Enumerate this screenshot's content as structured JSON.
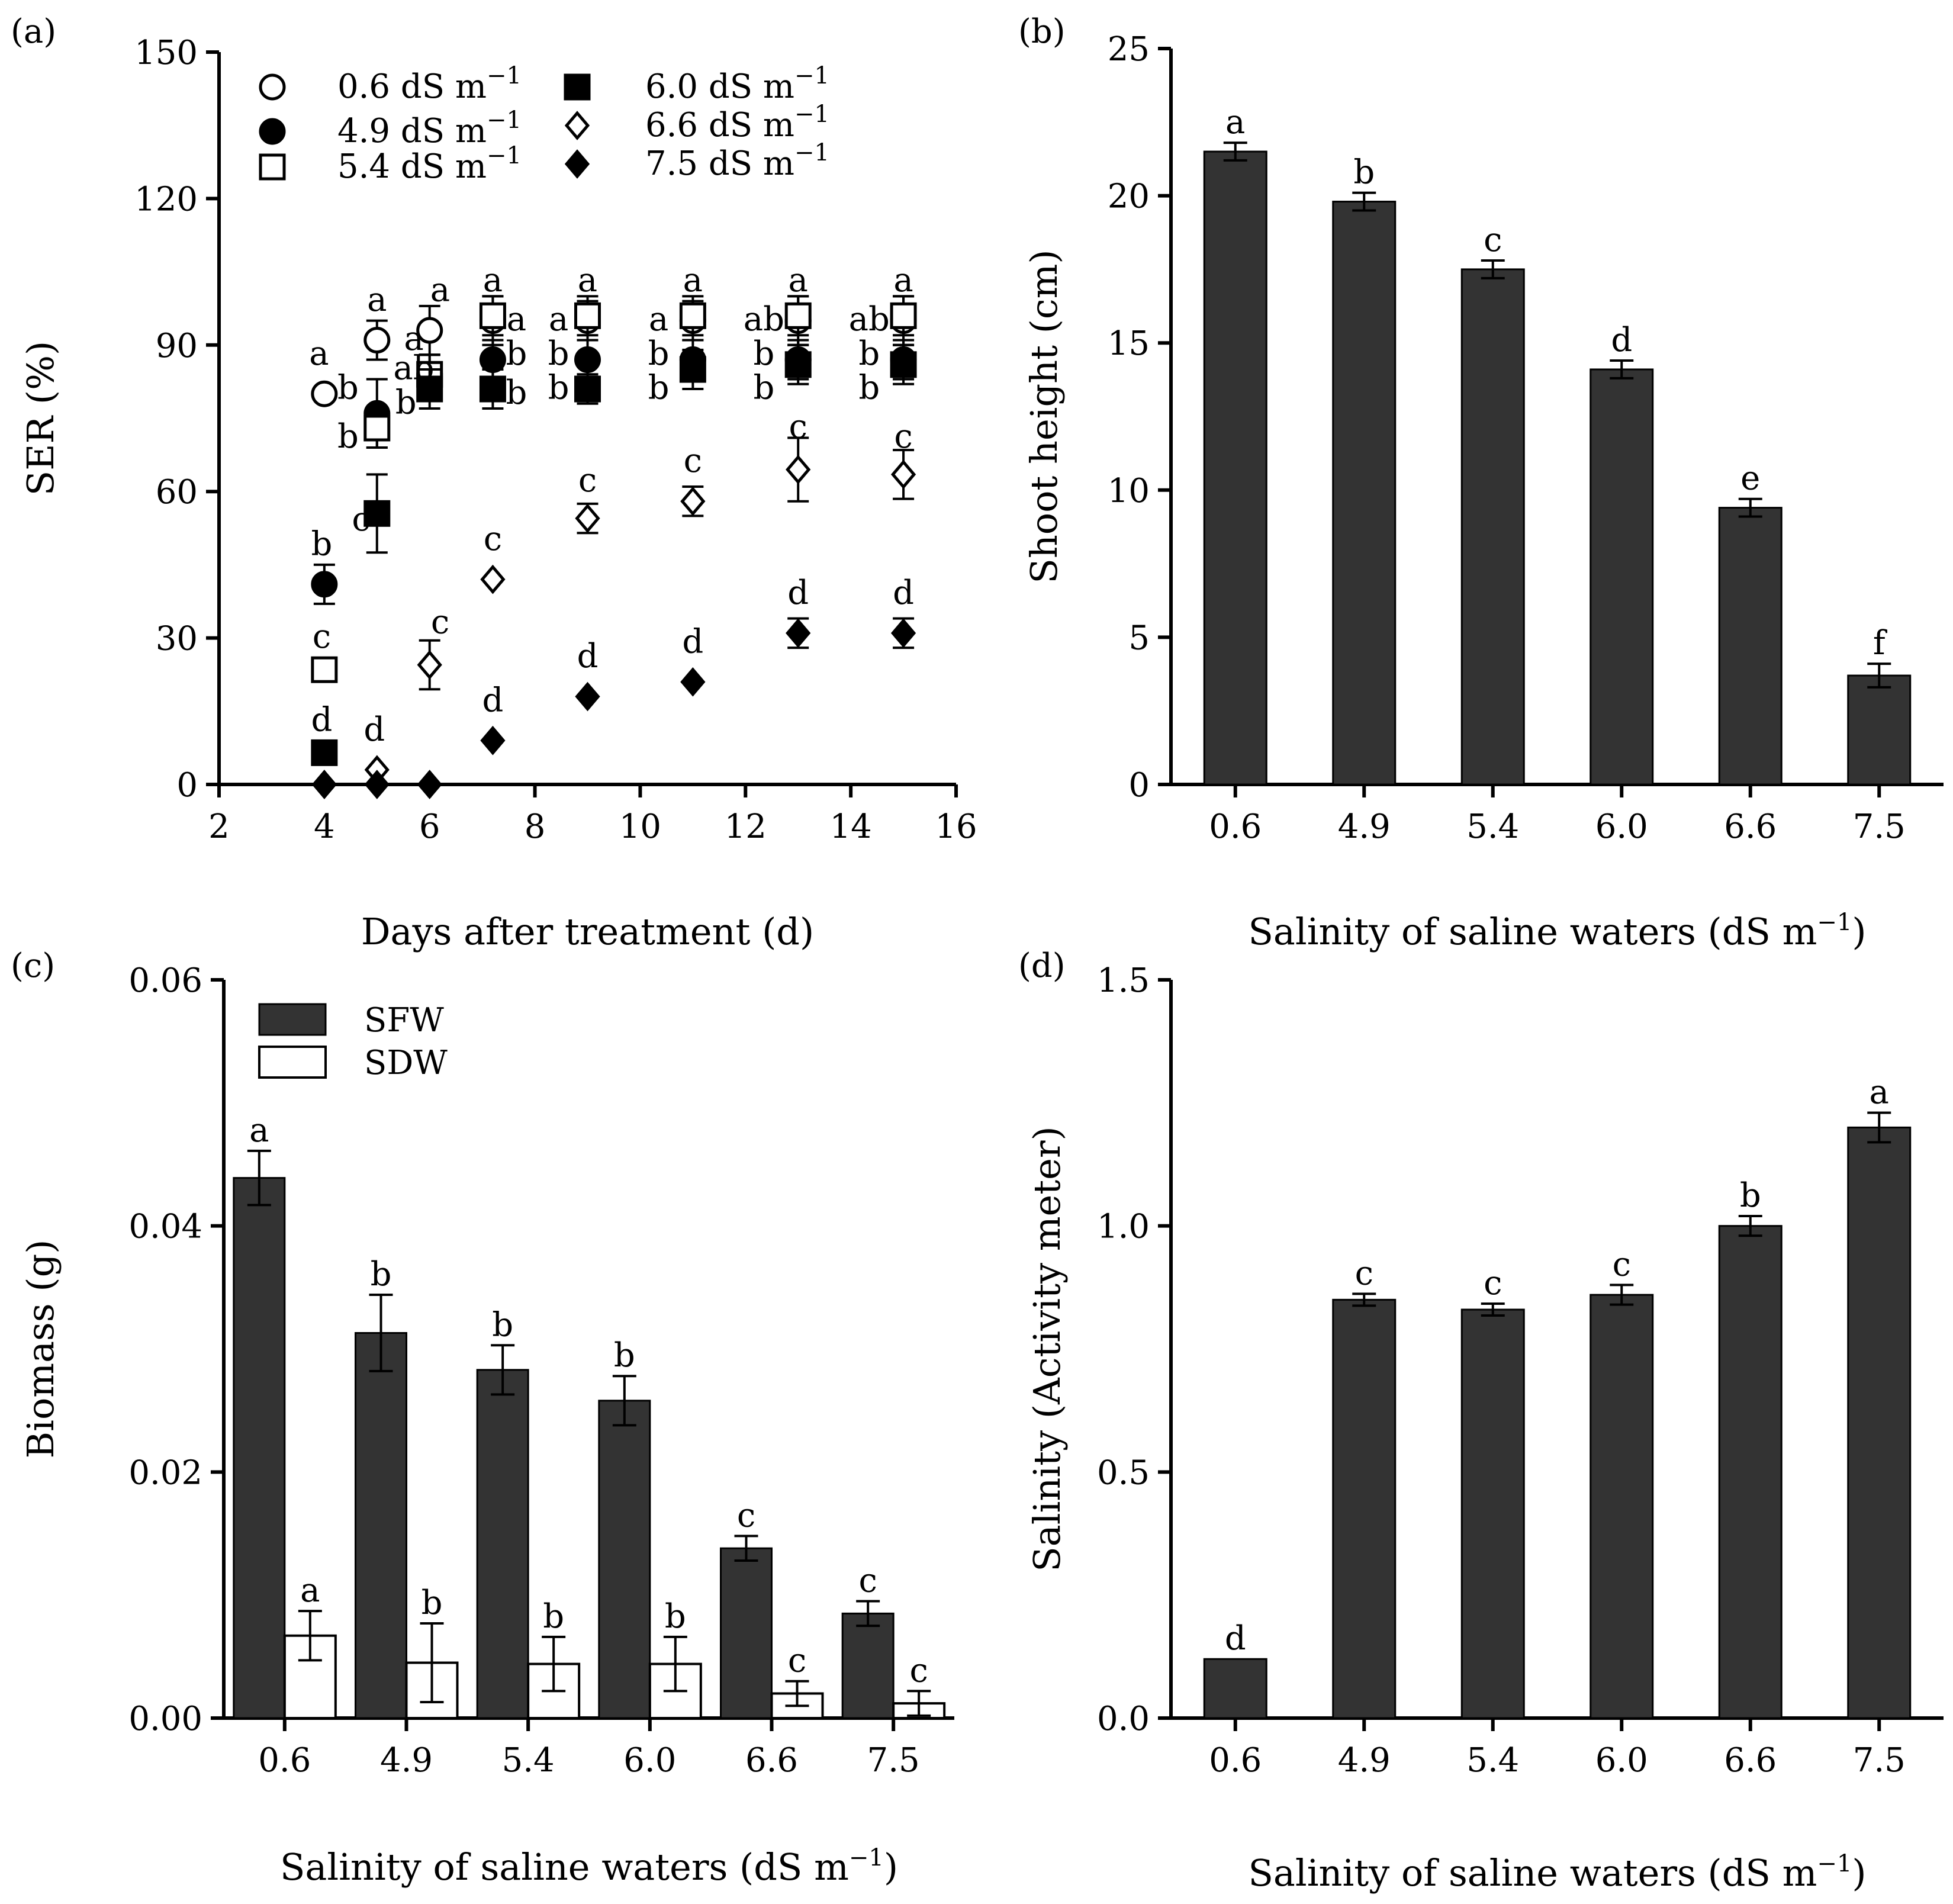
{
  "chart_data": [
    {
      "id": "a",
      "panel_label": "(a)",
      "type": "scatter",
      "xlabel": "Days after treatment (d)",
      "ylabel": "SER (%)",
      "xlim": [
        2,
        16
      ],
      "ylim": [
        0,
        150
      ],
      "xticks": [
        2,
        4,
        6,
        8,
        10,
        12,
        14,
        16
      ],
      "yticks": [
        0,
        30,
        60,
        90,
        120,
        150
      ],
      "legend": {
        "position": "top-left",
        "entries": [
          {
            "label": "0.6 dS m",
            "sup": "−1"
          },
          {
            "label": "4.9 dS m",
            "sup": "−1"
          },
          {
            "label": "5.4 dS m",
            "sup": "−1"
          },
          {
            "label": "6.0 dS m",
            "sup": "−1"
          },
          {
            "label": "6.6 dS m",
            "sup": "−1"
          },
          {
            "label": "7.5 dS m",
            "sup": "−1"
          }
        ]
      },
      "series": [
        {
          "name": "0.6 dS m−1",
          "marker": "circle-open",
          "x": [
            4,
            5,
            6,
            7.2,
            9,
            11,
            13,
            15
          ],
          "y": [
            80,
            91,
            93,
            95,
            95,
            95,
            95,
            95
          ],
          "err": [
            0,
            4,
            5,
            5,
            4,
            4,
            5,
            5
          ]
        },
        {
          "name": "4.9 dS m−1",
          "marker": "circle-filled",
          "x": [
            4,
            5,
            6,
            7.2,
            9,
            11,
            13,
            15
          ],
          "y": [
            41,
            76,
            84,
            87,
            87,
            87,
            87,
            87
          ],
          "err": [
            4,
            7,
            4,
            4,
            4,
            4,
            4,
            4
          ]
        },
        {
          "name": "5.4 dS m−1",
          "marker": "square-open",
          "x": [
            4,
            5,
            6,
            7.2,
            9,
            11,
            13,
            15
          ],
          "y": [
            23.5,
            73,
            84,
            96,
            96,
            96,
            96,
            96
          ],
          "err": [
            0,
            4,
            4,
            4,
            4,
            4,
            4,
            4
          ]
        },
        {
          "name": "6.0 dS m−1",
          "marker": "square-filled",
          "x": [
            4,
            5,
            6,
            7.2,
            9,
            11,
            13,
            15
          ],
          "y": [
            6.5,
            55.5,
            81,
            81,
            81,
            85,
            86,
            86
          ],
          "err": [
            0,
            8,
            4,
            4,
            3,
            4,
            4,
            4
          ]
        },
        {
          "name": "6.6 dS m−1",
          "marker": "diamond-open",
          "x": [
            4,
            5,
            6,
            7.2,
            9,
            11,
            13,
            15
          ],
          "y": [
            0,
            3,
            24.5,
            42,
            54.5,
            58,
            64.5,
            63.5
          ],
          "err": [
            0,
            0,
            5,
            0,
            3,
            3,
            6.5,
            5
          ]
        },
        {
          "name": "7.5 dS m−1",
          "marker": "diamond-filled",
          "x": [
            4,
            5,
            6,
            7.2,
            9,
            11,
            13,
            15
          ],
          "y": [
            0,
            0,
            0,
            9,
            18,
            21,
            31,
            31
          ],
          "err": [
            0,
            0,
            0,
            0,
            0,
            0,
            3,
            3
          ]
        }
      ],
      "annotations": [
        {
          "text": "a",
          "x": 3.9,
          "y": 86
        },
        {
          "text": "b",
          "x": 4.45,
          "y": 79
        },
        {
          "text": "b",
          "x": 4.45,
          "y": 69
        },
        {
          "text": "b",
          "x": 3.95,
          "y": 47
        },
        {
          "text": "c",
          "x": 3.95,
          "y": 28
        },
        {
          "text": "d",
          "x": 3.95,
          "y": 11
        },
        {
          "text": "a",
          "x": 5.0,
          "y": 97
        },
        {
          "text": "c",
          "x": 4.7,
          "y": 52
        },
        {
          "text": "d",
          "x": 4.95,
          "y": 9
        },
        {
          "text": "a",
          "x": 6.2,
          "y": 99
        },
        {
          "text": "ab",
          "x": 5.7,
          "y": 83
        },
        {
          "text": "b",
          "x": 5.55,
          "y": 76
        },
        {
          "text": "a",
          "x": 5.7,
          "y": 89
        },
        {
          "text": "c",
          "x": 6.2,
          "y": 31
        },
        {
          "text": "a",
          "x": 7.2,
          "y": 101
        },
        {
          "text": "a",
          "x": 7.65,
          "y": 93
        },
        {
          "text": "b",
          "x": 7.65,
          "y": 86
        },
        {
          "text": "b",
          "x": 7.65,
          "y": 78
        },
        {
          "text": "c",
          "x": 7.2,
          "y": 48
        },
        {
          "text": "d",
          "x": 7.2,
          "y": 15
        },
        {
          "text": "a",
          "x": 9.0,
          "y": 101
        },
        {
          "text": "a",
          "x": 8.45,
          "y": 93
        },
        {
          "text": "b",
          "x": 8.45,
          "y": 86
        },
        {
          "text": "b",
          "x": 8.45,
          "y": 79
        },
        {
          "text": "c",
          "x": 9.0,
          "y": 60
        },
        {
          "text": "d",
          "x": 9.0,
          "y": 24
        },
        {
          "text": "a",
          "x": 11.0,
          "y": 101
        },
        {
          "text": "a",
          "x": 10.35,
          "y": 93
        },
        {
          "text": "b",
          "x": 10.35,
          "y": 86
        },
        {
          "text": "b",
          "x": 10.35,
          "y": 79
        },
        {
          "text": "c",
          "x": 11.0,
          "y": 64
        },
        {
          "text": "d",
          "x": 11.0,
          "y": 27
        },
        {
          "text": "a",
          "x": 13.0,
          "y": 101
        },
        {
          "text": "ab",
          "x": 12.35,
          "y": 93
        },
        {
          "text": "b",
          "x": 12.35,
          "y": 86
        },
        {
          "text": "b",
          "x": 12.35,
          "y": 79
        },
        {
          "text": "c",
          "x": 13.0,
          "y": 71
        },
        {
          "text": "d",
          "x": 13.0,
          "y": 37
        },
        {
          "text": "a",
          "x": 15.0,
          "y": 101
        },
        {
          "text": "ab",
          "x": 14.35,
          "y": 93
        },
        {
          "text": "b",
          "x": 14.35,
          "y": 86
        },
        {
          "text": "b",
          "x": 14.35,
          "y": 79
        },
        {
          "text": "c",
          "x": 15.0,
          "y": 69
        },
        {
          "text": "d",
          "x": 15.0,
          "y": 37
        }
      ]
    },
    {
      "id": "b",
      "panel_label": "(b)",
      "type": "bar",
      "xlabel": "Salinity of saline waters (dS m",
      "xlabel_sup": "−1",
      "xlabel_end": ")",
      "ylabel": "Shoot height (cm)",
      "ylim": [
        0,
        25
      ],
      "yticks": [
        0,
        5,
        10,
        15,
        20,
        25
      ],
      "categories": [
        "0.6",
        "4.9",
        "5.4",
        "6.0",
        "6.6",
        "7.5"
      ],
      "values": [
        21.5,
        19.8,
        17.5,
        14.1,
        9.4,
        3.7
      ],
      "errors": [
        0.3,
        0.3,
        0.3,
        0.3,
        0.3,
        0.4
      ],
      "letters": [
        "a",
        "b",
        "c",
        "d",
        "e",
        "f"
      ]
    },
    {
      "id": "c",
      "panel_label": "(c)",
      "type": "bar",
      "xlabel": "Salinity of saline waters (dS m",
      "xlabel_sup": "−1",
      "xlabel_end": ")",
      "ylabel": "Biomass (g)",
      "ylim": [
        0,
        0.06
      ],
      "yticks": [
        "0.00",
        "0.02",
        "0.04",
        "0.06"
      ],
      "categories": [
        "0.6",
        "4.9",
        "5.4",
        "6.0",
        "6.6",
        "7.5"
      ],
      "legend": {
        "position": "top-left"
      },
      "series": [
        {
          "name": "SFW",
          "style": "dark",
          "values": [
            0.0439,
            0.0313,
            0.0283,
            0.0258,
            0.0138,
            0.0085
          ],
          "errors": [
            0.0022,
            0.0031,
            0.002,
            0.002,
            0.001,
            0.001
          ],
          "letters": [
            "a",
            "b",
            "b",
            "b",
            "c",
            "c"
          ]
        },
        {
          "name": "SDW",
          "style": "light",
          "values": [
            0.0067,
            0.0045,
            0.0044,
            0.0044,
            0.002,
            0.0012
          ],
          "errors": [
            0.002,
            0.0032,
            0.0022,
            0.0022,
            0.001,
            0.001
          ],
          "letters": [
            "a",
            "b",
            "b",
            "b",
            "c",
            "c"
          ]
        }
      ]
    },
    {
      "id": "d",
      "panel_label": "(d)",
      "type": "bar",
      "xlabel": "Salinity of saline waters (dS m",
      "xlabel_sup": "−1",
      "xlabel_end": ")",
      "ylabel": "Salinity (Activity meter)",
      "ylim": [
        0,
        1.5
      ],
      "yticks": [
        "0.0",
        "0.5",
        "1.0",
        "1.5"
      ],
      "categories": [
        "0.6",
        "4.9",
        "5.4",
        "6.0",
        "6.6",
        "7.5"
      ],
      "values": [
        0.12,
        0.85,
        0.83,
        0.86,
        1.0,
        1.2
      ],
      "errors": [
        0,
        0.012,
        0.012,
        0.02,
        0.02,
        0.03
      ],
      "letters": [
        "d",
        "c",
        "c",
        "c",
        "b",
        "a"
      ]
    }
  ]
}
